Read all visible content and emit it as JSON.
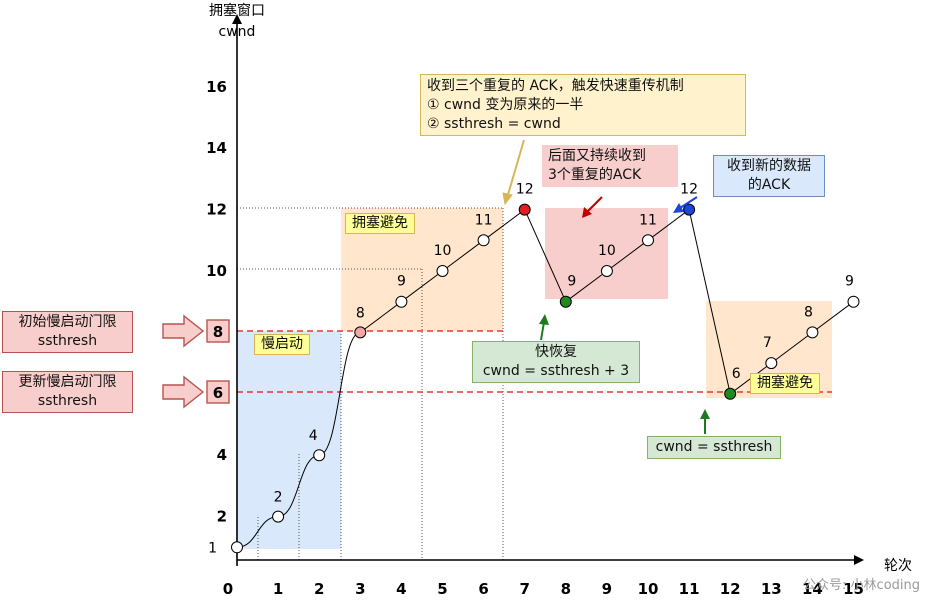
{
  "axes": {
    "y_title_line1": "拥塞窗口",
    "y_title_line2": "cwnd",
    "x_title": "轮次",
    "y_ticks": [
      "2",
      "4",
      "6",
      "8",
      "10",
      "12",
      "14",
      "16"
    ],
    "x_ticks": [
      "0",
      "1",
      "2",
      "3",
      "4",
      "5",
      "6",
      "7",
      "8",
      "9",
      "10",
      "11",
      "12",
      "13",
      "14",
      "15"
    ]
  },
  "curve": {
    "points": [
      {
        "round": 0,
        "cwnd": 1,
        "label": "1"
      },
      {
        "round": 1,
        "cwnd": 2,
        "label": "2"
      },
      {
        "round": 2,
        "cwnd": 4,
        "label": "4"
      },
      {
        "round": 3,
        "cwnd": 8,
        "label": "8"
      },
      {
        "round": 4,
        "cwnd": 9,
        "label": "9"
      },
      {
        "round": 5,
        "cwnd": 10,
        "label": "10"
      },
      {
        "round": 6,
        "cwnd": 11,
        "label": "11"
      },
      {
        "round": 7,
        "cwnd": 12,
        "label": "12"
      },
      {
        "round": 8,
        "cwnd": 9,
        "label": "9"
      },
      {
        "round": 9,
        "cwnd": 10,
        "label": "10"
      },
      {
        "round": 10,
        "cwnd": 11,
        "label": "11"
      },
      {
        "round": 11,
        "cwnd": 12,
        "label": "12"
      },
      {
        "round": 12,
        "cwnd": 6,
        "label": "6"
      },
      {
        "round": 13,
        "cwnd": 7,
        "label": "7"
      },
      {
        "round": 14,
        "cwnd": 8,
        "label": "8"
      },
      {
        "round": 15,
        "cwnd": 9,
        "label": "9"
      }
    ]
  },
  "thresholds": {
    "initial": {
      "value": "8",
      "label_line1": "初始慢启动门限",
      "label_line2": "ssthresh"
    },
    "updated": {
      "value": "6",
      "label_line1": "更新慢启动门限",
      "label_line2": "ssthresh"
    }
  },
  "phases": {
    "slow_start": "慢启动",
    "congestion_avoidance_1": "拥塞避免",
    "congestion_avoidance_2": "拥塞避免"
  },
  "notes": {
    "triple_ack": {
      "line1": "收到三个重复的 ACK，触发快速重传机制",
      "line2": "① cwnd 变为原来的一半",
      "line3": "② ssthresh = cwnd"
    },
    "more_dup_ack": {
      "line1": "后面又持续收到",
      "line2": "3个重复的ACK"
    },
    "new_ack": {
      "line1": "收到新的数据",
      "line2": "的ACK"
    },
    "fast_recovery": {
      "line1": "快恢复",
      "line2": "cwnd = ssthresh + 3"
    },
    "reset": {
      "line1": "cwnd = ssthresh"
    }
  },
  "watermark": "公众号: 小林coding",
  "colors": {
    "slow_start_fill": "#dae8fc",
    "avoidance_fill": "#ffe6cc",
    "recovery_fill": "#f8cecc",
    "note_yellow": "#fff2cc",
    "note_red": "#f8cecc",
    "note_blue": "#dae8fc",
    "note_green": "#d5e8d4",
    "threshold_red": "#e53935",
    "point_red": "#e02020",
    "point_green": "#1f8a1f",
    "point_blue": "#1a47d6",
    "point_pink": "#f4a6a6"
  }
}
